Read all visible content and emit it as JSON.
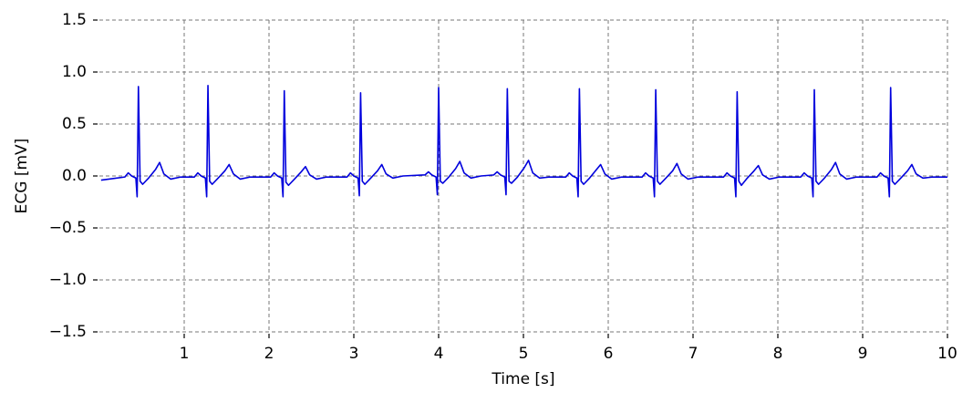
{
  "chart_data": {
    "type": "line",
    "xlabel": "Time [s]",
    "ylabel": "ECG [mV]",
    "xlim": [
      0,
      10
    ],
    "ylim": [
      -1.5,
      1.5
    ],
    "xticks": [
      1,
      2,
      3,
      4,
      5,
      6,
      7,
      8,
      9,
      10
    ],
    "yticks": [
      {
        "value": -1.5,
        "label": "−1.5"
      },
      {
        "value": -1.0,
        "label": "−1.0"
      },
      {
        "value": -0.5,
        "label": "−0.5"
      },
      {
        "value": 0,
        "label": "0.0"
      },
      0.5,
      {
        "value": 1.0,
        "label": "1.0"
      },
      1.5
    ],
    "grid": true,
    "x": [
      0.02,
      0.3,
      0.34,
      0.38,
      0.43,
      0.445,
      0.46,
      0.48,
      0.51,
      0.58,
      0.66,
      0.71,
      0.76,
      0.84,
      0.96,
      1.12,
      1.16,
      1.2,
      1.25,
      1.265,
      1.28,
      1.3,
      1.33,
      1.4,
      1.48,
      1.53,
      1.58,
      1.66,
      1.78,
      2.02,
      2.06,
      2.1,
      2.15,
      2.165,
      2.18,
      2.2,
      2.23,
      2.3,
      2.38,
      2.43,
      2.48,
      2.56,
      2.68,
      2.92,
      2.96,
      3.0,
      3.05,
      3.065,
      3.08,
      3.1,
      3.13,
      3.2,
      3.28,
      3.33,
      3.38,
      3.46,
      3.58,
      3.84,
      3.88,
      3.92,
      3.97,
      3.985,
      4.0,
      4.02,
      4.05,
      4.12,
      4.2,
      4.25,
      4.3,
      4.38,
      4.5,
      4.65,
      4.69,
      4.73,
      4.78,
      4.795,
      4.81,
      4.83,
      4.86,
      4.93,
      5.01,
      5.06,
      5.11,
      5.19,
      5.31,
      5.5,
      5.54,
      5.58,
      5.63,
      5.645,
      5.66,
      5.68,
      5.71,
      5.78,
      5.86,
      5.91,
      5.96,
      6.04,
      6.16,
      6.4,
      6.44,
      6.48,
      6.53,
      6.545,
      6.56,
      6.58,
      6.61,
      6.68,
      6.76,
      6.81,
      6.86,
      6.94,
      7.06,
      7.36,
      7.4,
      7.44,
      7.49,
      7.505,
      7.52,
      7.54,
      7.57,
      7.64,
      7.72,
      7.77,
      7.82,
      7.9,
      8.02,
      8.27,
      8.31,
      8.35,
      8.4,
      8.415,
      8.43,
      8.45,
      8.48,
      8.55,
      8.63,
      8.68,
      8.73,
      8.81,
      8.93,
      9.17,
      9.21,
      9.25,
      9.3,
      9.315,
      9.33,
      9.35,
      9.38,
      9.45,
      9.53,
      9.58,
      9.63,
      9.71,
      9.83,
      10.0
    ],
    "series": [
      {
        "name": "ECG",
        "color": "#0000dd",
        "values": [
          -0.04,
          -0.01,
          0.03,
          0,
          -0.02,
          -0.2,
          0.86,
          -0.05,
          -0.08,
          -0.02,
          0.06,
          0.13,
          0.02,
          -0.03,
          -0.01,
          -0.01,
          0.03,
          0,
          -0.02,
          -0.2,
          0.87,
          -0.05,
          -0.08,
          -0.02,
          0.05,
          0.11,
          0.02,
          -0.03,
          -0.01,
          -0.01,
          0.03,
          0,
          -0.02,
          -0.2,
          0.82,
          -0.06,
          -0.09,
          -0.03,
          0.04,
          0.09,
          0.01,
          -0.03,
          -0.01,
          -0.01,
          0.03,
          0,
          -0.02,
          -0.19,
          0.8,
          -0.05,
          -0.08,
          -0.02,
          0.05,
          0.11,
          0.02,
          -0.02,
          0,
          0.01,
          0.04,
          0.01,
          -0.01,
          -0.18,
          0.85,
          -0.05,
          -0.07,
          -0.01,
          0.07,
          0.14,
          0.03,
          -0.02,
          0,
          0.01,
          0.04,
          0.01,
          -0.01,
          -0.18,
          0.84,
          -0.05,
          -0.07,
          -0.01,
          0.08,
          0.15,
          0.03,
          -0.02,
          -0.01,
          -0.01,
          0.03,
          0,
          -0.02,
          -0.2,
          0.84,
          -0.05,
          -0.08,
          -0.02,
          0.06,
          0.11,
          0.02,
          -0.03,
          -0.01,
          -0.01,
          0.03,
          0,
          -0.02,
          -0.2,
          0.83,
          -0.05,
          -0.08,
          -0.02,
          0.05,
          0.12,
          0.02,
          -0.03,
          -0.01,
          -0.01,
          0.03,
          0,
          -0.02,
          -0.2,
          0.81,
          -0.05,
          -0.09,
          -0.02,
          0.05,
          0.1,
          0.01,
          -0.03,
          -0.01,
          -0.01,
          0.03,
          0,
          -0.02,
          -0.2,
          0.83,
          -0.05,
          -0.08,
          -0.02,
          0.06,
          0.13,
          0.02,
          -0.03,
          -0.01,
          -0.01,
          0.03,
          0,
          -0.02,
          -0.2,
          0.85,
          -0.05,
          -0.08,
          -0.02,
          0.05,
          0.11,
          0.02,
          -0.02,
          -0.01,
          -0.01
        ]
      }
    ]
  }
}
